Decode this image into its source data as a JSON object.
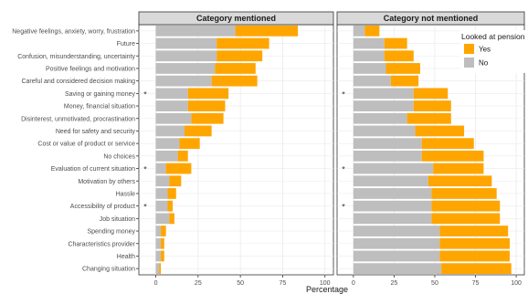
{
  "chart_data": {
    "type": "bar",
    "stacked": true,
    "orientation": "horizontal",
    "xlabel": "Percentage",
    "xlim": [
      -10,
      105
    ],
    "xticks": [
      0,
      25,
      50,
      75,
      100
    ],
    "grid": true,
    "legend": {
      "title": "Looked at pension",
      "placement": "top-right",
      "entries": [
        {
          "label": "Yes",
          "color": "#FFA500"
        },
        {
          "label": "No",
          "color": "#BEBEBE"
        }
      ]
    },
    "colors": {
      "yes": "#FFA500",
      "no": "#BEBEBE",
      "strip": "#D9D9D9",
      "panel_bg": "#FFFFFF",
      "grid": "#EBEBEB"
    },
    "categories": [
      "Negative feelings, anxiety, worry, frustration",
      "Future",
      "Confusion, misunderstanding, uncertainty",
      "Positive feelings and motivation",
      "Careful and considered decision making",
      "Saving or gaining money",
      "Money, financial situation",
      "Disinterest, unmotivated, procrastination",
      "Need for safety and security",
      "Cost or value of product or service",
      "No choices",
      "Evaluation of current situation",
      "Motivation by others",
      "Hassle",
      "Accessibility of product",
      "Job situation",
      "Spending money",
      "Characteristics provider",
      "Health",
      "Changing situation"
    ],
    "significance_marker": "*",
    "significant": [
      false,
      false,
      false,
      false,
      false,
      true,
      false,
      false,
      false,
      false,
      false,
      true,
      false,
      false,
      true,
      false,
      false,
      false,
      false,
      false
    ],
    "panels": [
      {
        "title": "Category mentioned",
        "no": [
          47,
          36,
          36,
          35,
          33,
          19,
          19,
          21,
          17,
          14,
          13,
          6,
          8,
          7,
          7,
          8,
          3,
          3,
          3,
          2
        ],
        "yes": [
          37,
          31,
          27,
          24,
          27,
          24,
          22,
          19,
          16,
          12,
          6,
          15,
          7,
          5,
          3,
          3,
          3,
          2,
          2,
          1
        ]
      },
      {
        "title": "Category not mentioned",
        "no": [
          7,
          19,
          19,
          20,
          23,
          37,
          37,
          33,
          38,
          42,
          42,
          49,
          46,
          48,
          48,
          48,
          53,
          53,
          53,
          54
        ],
        "yes": [
          9,
          14,
          18,
          21,
          17,
          21,
          23,
          27,
          30,
          32,
          38,
          31,
          39,
          40,
          42,
          42,
          42,
          43,
          43,
          43
        ]
      }
    ]
  }
}
